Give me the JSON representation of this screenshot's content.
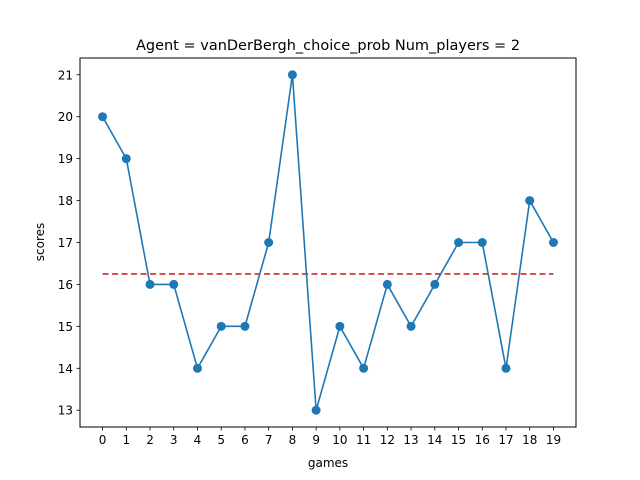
{
  "chart_data": {
    "type": "line",
    "title": "Agent = vanDerBergh_choice_prob Num_players = 2",
    "xlabel": "games",
    "ylabel": "scores",
    "x": [
      0,
      1,
      2,
      3,
      4,
      5,
      6,
      7,
      8,
      9,
      10,
      11,
      12,
      13,
      14,
      15,
      16,
      17,
      18,
      19
    ],
    "series": [
      {
        "values": [
          20,
          19,
          16,
          16,
          14,
          15,
          15,
          17,
          21,
          13,
          15,
          14,
          16,
          15,
          16,
          17,
          17,
          14,
          18,
          17
        ],
        "color": "#1f77b4",
        "marker": "circle"
      }
    ],
    "reference_line": {
      "value": 16.25,
      "color": "#d62728",
      "style": "dashed"
    },
    "xlim": [
      -0.95,
      19.95
    ],
    "ylim": [
      12.6,
      21.4
    ],
    "xticks": [
      "0",
      "1",
      "2",
      "3",
      "4",
      "5",
      "6",
      "7",
      "8",
      "9",
      "10",
      "11",
      "12",
      "13",
      "14",
      "15",
      "16",
      "17",
      "18",
      "19"
    ],
    "yticks": [
      "13",
      "14",
      "15",
      "16",
      "17",
      "18",
      "19",
      "20",
      "21"
    ],
    "grid": false,
    "legend": "none"
  }
}
